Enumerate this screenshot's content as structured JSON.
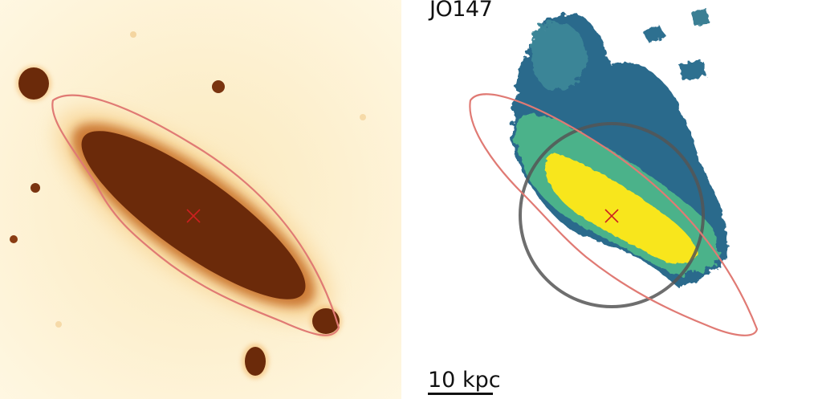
{
  "galaxy": {
    "name": "JO147"
  },
  "scale_bar": {
    "label": "10 kpc"
  },
  "colors": {
    "stellar_dark": "#6b2a0a",
    "stellar_bg": "#fdf3d6",
    "contour": "#e07a74",
    "circle": "#555555",
    "center_marker": "#cc2020",
    "halpha_low": "#2c6a8c",
    "halpha_mid": "#4bb28a",
    "halpha_high": "#f8e61e"
  }
}
